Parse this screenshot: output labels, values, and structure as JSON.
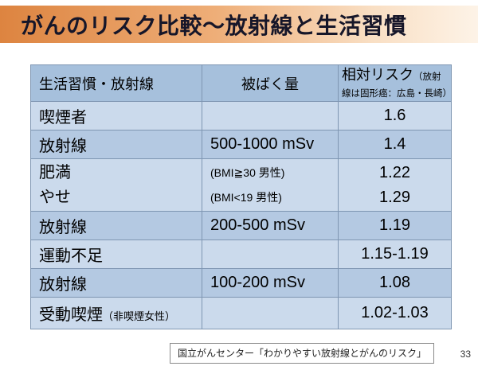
{
  "slide": {
    "title": "がんのリスク比較～放射線と生活習慣",
    "source": "国立がんセンター「わかりやすい放射線とがんのリスク」",
    "page_number": "33"
  },
  "colors": {
    "title_gradient_start": "#dd8440",
    "title_gradient_end": "#fdf3e7",
    "header_row": "#a6c0dc",
    "row_light": "#cbdaec",
    "row_dark": "#b4c9e2",
    "table_border": "#7f96b2"
  },
  "table": {
    "headers": [
      {
        "label": "生活習慣・放射線"
      },
      {
        "label": "被ばく量"
      },
      {
        "label": "相対リスク",
        "note": "（放射線は固形癌：広島・長崎）"
      }
    ],
    "rows": [
      {
        "habit": "喫煙者",
        "dose": "",
        "risk": "1.6"
      },
      {
        "habit": "放射線",
        "dose": "500-1000 mSv",
        "risk": "1.4"
      },
      {
        "habit_line1": "肥満",
        "habit_line2": "やせ",
        "dose_line1": "(BMI≧30 男性)",
        "dose_line2": "(BMI<19 男性)",
        "risk_line1": "1.22",
        "risk_line2": "1.29"
      },
      {
        "habit": "放射線",
        "dose": "200-500 mSv",
        "risk": "1.19"
      },
      {
        "habit": "運動不足",
        "dose": "",
        "risk": "1.15-1.19"
      },
      {
        "habit": "放射線",
        "dose": "100-200 mSv",
        "risk": "1.08"
      },
      {
        "habit": "受動喫煙",
        "habit_note": "（非喫煙女性）",
        "dose": "",
        "risk": "1.02-1.03"
      }
    ]
  }
}
